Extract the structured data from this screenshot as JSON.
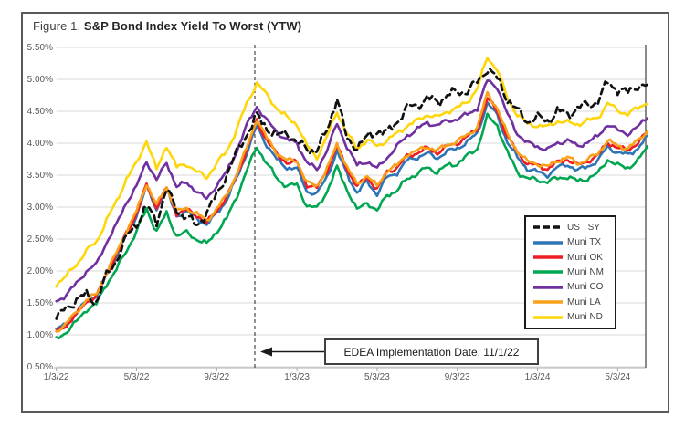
{
  "figure_title": {
    "prefix": "Figure 1. ",
    "main": "S&P Bond Index Yield To Worst (YTW)"
  },
  "chart_data": {
    "type": "line",
    "title": "Figure 1. S&P Bond Index Yield To Worst (YTW)",
    "x_axis": {
      "unit": "date",
      "start": "1/3/22",
      "point_step_months": 0.5,
      "tick_labels": [
        "1/3/22",
        "5/3/22",
        "9/3/22",
        "1/3/23",
        "5/3/23",
        "9/3/23",
        "1/3/24",
        "5/3/24"
      ]
    },
    "y_axis": {
      "unit": "percent yield",
      "lim": [
        0.5,
        5.5
      ],
      "step": 0.5,
      "tick_labels": [
        "5.50%",
        "5.00%",
        "4.50%",
        "4.00%",
        "3.50%",
        "3.00%",
        "2.50%",
        "2.00%",
        "1.50%",
        "1.00%",
        "0.50%"
      ]
    },
    "grid": true,
    "legend_position": "middle-right box",
    "annotation": {
      "label": "EDEA Implementation Date, 11/1/22",
      "vline_date": "11/1/22",
      "vline_month": 9.9
    },
    "series": [
      {
        "name": "US TSY",
        "color": "#111111",
        "dashed": true,
        "jag": 0.026,
        "values": [
          1.25,
          1.42,
          1.55,
          1.62,
          1.52,
          1.92,
          2.18,
          2.52,
          2.75,
          3.0,
          2.78,
          3.28,
          2.95,
          2.85,
          2.7,
          2.92,
          3.18,
          3.52,
          3.85,
          4.15,
          4.42,
          4.25,
          4.1,
          4.18,
          4.0,
          3.92,
          3.88,
          4.2,
          4.72,
          4.05,
          3.95,
          4.08,
          4.2,
          4.15,
          4.35,
          4.55,
          4.6,
          4.7,
          4.65,
          4.75,
          4.8,
          4.82,
          4.95,
          5.18,
          5.0,
          4.7,
          4.5,
          4.35,
          4.4,
          4.35,
          4.5,
          4.45,
          4.55,
          4.6,
          4.65,
          4.95,
          4.85,
          4.78,
          4.92,
          4.88
        ]
      },
      {
        "name": "Muni TX",
        "color": "#2E75B6",
        "dashed": false,
        "jag": 0.012,
        "values": [
          1.08,
          1.17,
          1.33,
          1.53,
          1.61,
          1.94,
          2.23,
          2.57,
          2.87,
          3.32,
          2.97,
          3.27,
          2.87,
          2.92,
          2.84,
          2.71,
          2.91,
          3.11,
          3.46,
          3.85,
          4.27,
          3.97,
          3.74,
          3.62,
          3.6,
          3.25,
          3.2,
          3.48,
          3.87,
          3.52,
          3.22,
          3.4,
          3.2,
          3.47,
          3.54,
          3.73,
          3.78,
          3.84,
          3.77,
          3.87,
          3.92,
          4.02,
          4.15,
          4.63,
          4.43,
          4.02,
          3.77,
          3.6,
          3.55,
          3.5,
          3.62,
          3.67,
          3.57,
          3.64,
          3.72,
          3.95,
          3.85,
          3.82,
          3.92,
          4.1
        ]
      },
      {
        "name": "Muni OK",
        "color": "#EE1C25",
        "dashed": false,
        "jag": 0.012,
        "values": [
          1.04,
          1.15,
          1.32,
          1.52,
          1.6,
          1.95,
          2.25,
          2.6,
          2.9,
          3.35,
          3.0,
          3.3,
          2.9,
          2.95,
          2.88,
          2.75,
          2.95,
          3.15,
          3.5,
          3.9,
          4.35,
          4.05,
          3.82,
          3.7,
          3.7,
          3.35,
          3.3,
          3.57,
          3.95,
          3.6,
          3.32,
          3.47,
          3.28,
          3.55,
          3.62,
          3.8,
          3.85,
          3.92,
          3.85,
          3.95,
          4.0,
          4.1,
          4.22,
          4.7,
          4.5,
          4.1,
          3.85,
          3.68,
          3.65,
          3.6,
          3.7,
          3.75,
          3.65,
          3.72,
          3.8,
          4.02,
          3.92,
          3.9,
          4.0,
          4.18
        ]
      },
      {
        "name": "Muni NM",
        "color": "#00A651",
        "dashed": false,
        "jag": 0.013,
        "values": [
          0.93,
          1.05,
          1.2,
          1.4,
          1.48,
          1.8,
          2.02,
          2.32,
          2.62,
          2.97,
          2.62,
          2.9,
          2.55,
          2.6,
          2.5,
          2.42,
          2.62,
          2.82,
          3.17,
          3.57,
          3.95,
          3.68,
          3.45,
          3.33,
          3.35,
          3.02,
          2.98,
          3.25,
          3.62,
          3.28,
          2.95,
          3.08,
          2.93,
          3.2,
          3.25,
          3.45,
          3.52,
          3.62,
          3.55,
          3.65,
          3.68,
          3.8,
          3.92,
          4.42,
          4.28,
          3.85,
          3.55,
          3.45,
          3.42,
          3.4,
          3.45,
          3.48,
          3.4,
          3.45,
          3.52,
          3.75,
          3.65,
          3.62,
          3.72,
          3.95
        ]
      },
      {
        "name": "Muni CO",
        "color": "#7030A0",
        "dashed": false,
        "jag": 0.012,
        "values": [
          1.52,
          1.63,
          1.8,
          2.0,
          2.1,
          2.45,
          2.72,
          3.08,
          3.32,
          3.72,
          3.42,
          3.7,
          3.32,
          3.38,
          3.25,
          3.12,
          3.35,
          3.55,
          3.88,
          4.28,
          4.58,
          4.35,
          4.18,
          4.05,
          4.0,
          3.7,
          3.58,
          3.9,
          4.3,
          3.95,
          3.65,
          3.72,
          3.6,
          3.78,
          3.95,
          4.12,
          4.22,
          4.32,
          4.28,
          4.35,
          4.38,
          4.45,
          4.55,
          4.98,
          4.88,
          4.45,
          4.15,
          4.0,
          3.95,
          3.9,
          4.0,
          4.05,
          3.95,
          4.02,
          4.1,
          4.3,
          4.2,
          4.15,
          4.25,
          4.42
        ]
      },
      {
        "name": "Muni LA",
        "color": "#F9A11B",
        "dashed": false,
        "jag": 0.012,
        "values": [
          1.06,
          1.18,
          1.35,
          1.55,
          1.63,
          1.98,
          2.28,
          2.63,
          2.93,
          3.37,
          3.03,
          3.32,
          2.93,
          2.98,
          2.9,
          2.78,
          2.98,
          3.18,
          3.53,
          3.93,
          4.38,
          4.08,
          3.85,
          3.73,
          3.73,
          3.38,
          3.33,
          3.6,
          3.98,
          3.63,
          3.35,
          3.5,
          3.32,
          3.58,
          3.65,
          3.83,
          3.88,
          3.95,
          3.88,
          3.98,
          4.03,
          4.13,
          4.25,
          4.78,
          4.55,
          4.13,
          3.88,
          3.71,
          3.68,
          3.63,
          3.73,
          3.78,
          3.68,
          3.75,
          3.83,
          4.05,
          3.95,
          3.93,
          4.03,
          4.2
        ]
      },
      {
        "name": "Muni ND",
        "color": "#FFD60A",
        "dashed": false,
        "jag": 0.013,
        "values": [
          1.8,
          1.92,
          2.1,
          2.32,
          2.45,
          2.8,
          3.08,
          3.45,
          3.68,
          4.05,
          3.58,
          3.97,
          3.62,
          3.68,
          3.55,
          3.47,
          3.68,
          3.88,
          4.22,
          4.62,
          4.95,
          4.75,
          4.55,
          4.4,
          4.3,
          3.95,
          3.78,
          4.1,
          4.5,
          4.15,
          3.92,
          4.05,
          3.95,
          4.05,
          4.15,
          4.28,
          4.35,
          4.45,
          4.4,
          4.5,
          4.55,
          4.65,
          4.85,
          5.35,
          5.15,
          4.7,
          4.45,
          4.3,
          4.28,
          4.25,
          4.35,
          4.32,
          4.3,
          4.35,
          4.4,
          4.62,
          4.52,
          4.45,
          4.55,
          4.65
        ]
      }
    ],
    "draw_order": [
      1,
      2,
      3,
      4,
      5,
      6,
      0
    ]
  }
}
